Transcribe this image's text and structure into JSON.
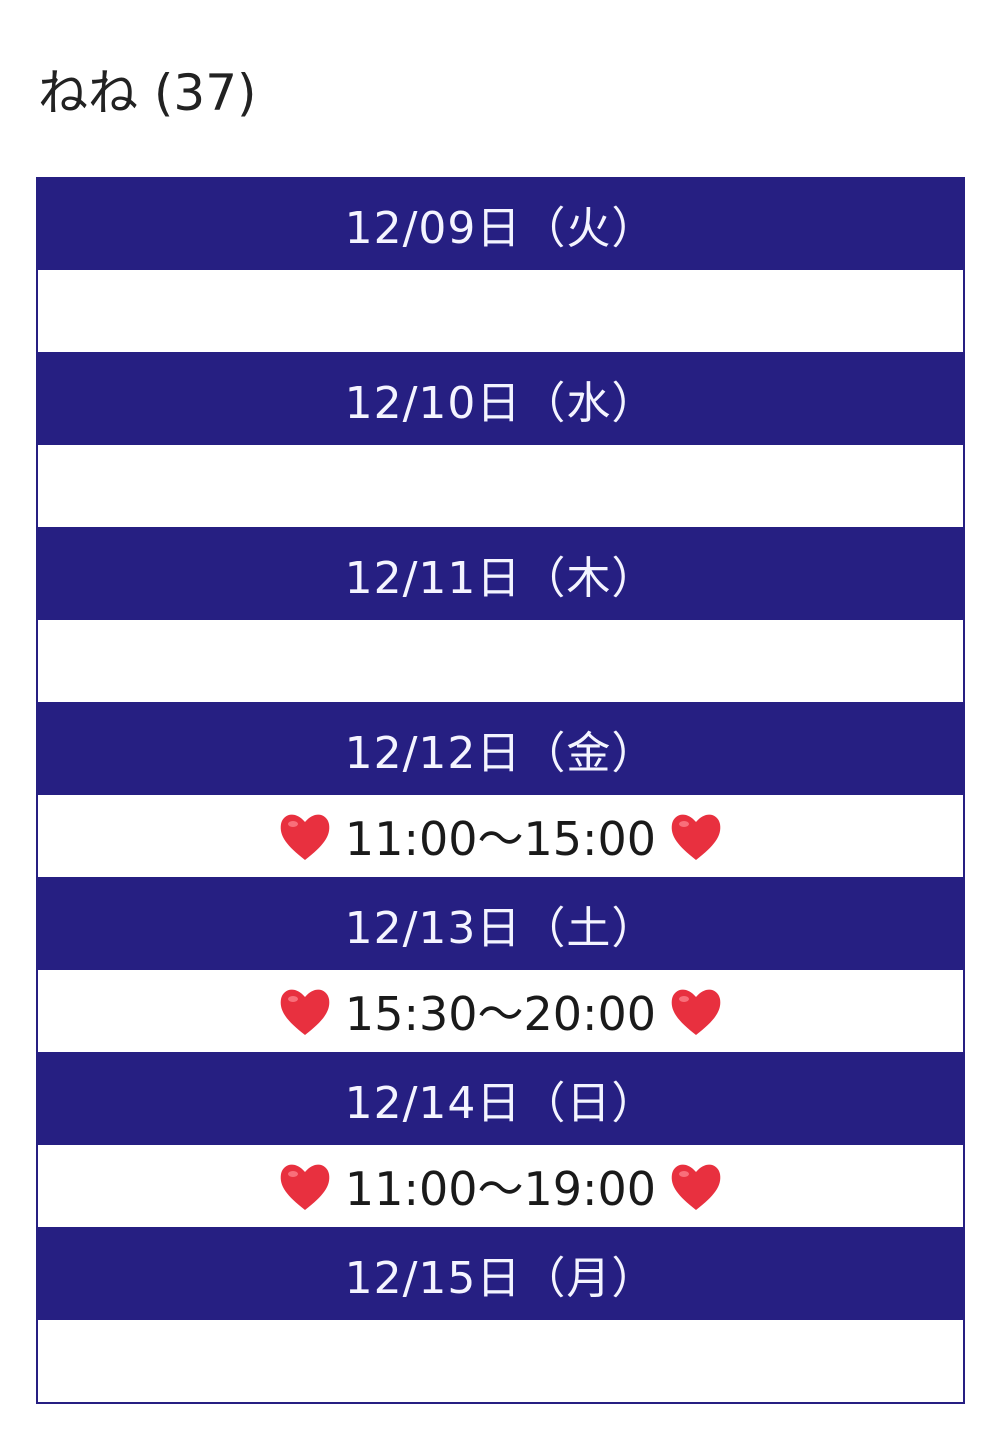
{
  "title": "ねね (37)",
  "heart_color": "#e8303f",
  "table_color": "#261f82",
  "days": [
    {
      "date": "12/09日（火）",
      "time": ""
    },
    {
      "date": "12/10日（水）",
      "time": ""
    },
    {
      "date": "12/11日（木）",
      "time": ""
    },
    {
      "date": "12/12日（金）",
      "time": "11:00〜15:00"
    },
    {
      "date": "12/13日（土）",
      "time": "15:30〜20:00"
    },
    {
      "date": "12/14日（日）",
      "time": "11:00〜19:00"
    },
    {
      "date": "12/15日（月）",
      "time": ""
    }
  ]
}
